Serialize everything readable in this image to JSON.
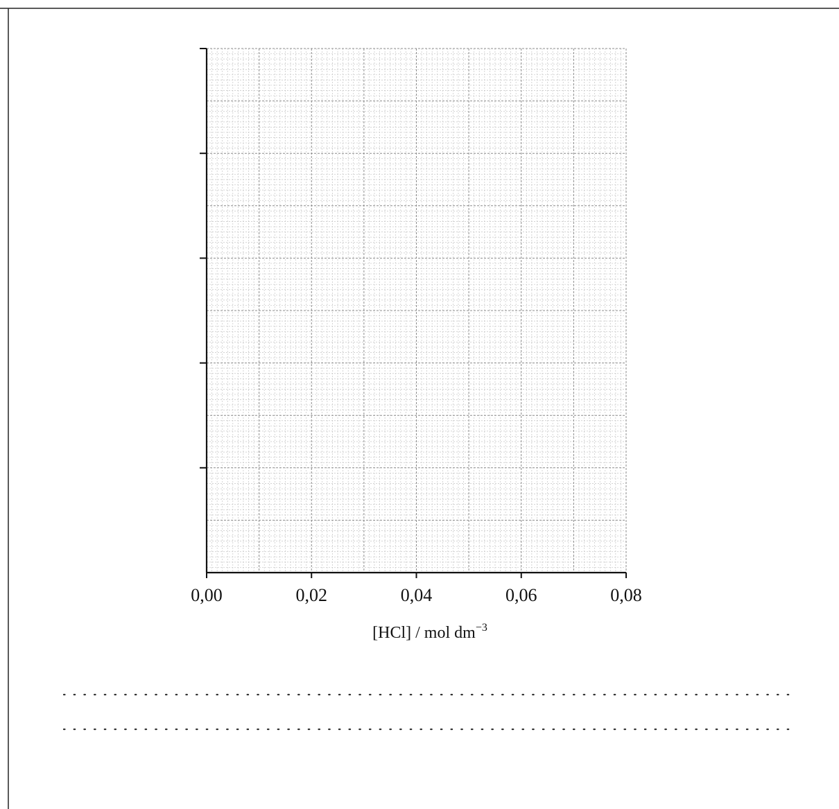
{
  "chart_data": {
    "type": "scatter",
    "title": "",
    "xlabel": "[HCl] / mol dm",
    "xlabel_superscript": "−3",
    "ylabel": "",
    "xlim": [
      0,
      0.08
    ],
    "x_ticks": [
      0,
      0.02,
      0.04,
      0.06,
      0.08
    ],
    "x_tick_labels": [
      "0,00",
      "0,02",
      "0,04",
      "0,06",
      "0,08"
    ],
    "y_major_ticks": 5,
    "y_tick_labels": [],
    "grid": true,
    "series": []
  },
  "answer_lines": {
    "count": 2,
    "style": "dotted"
  },
  "colors": {
    "axis": "#111111",
    "grid_major": "#8c8c8c",
    "grid_minor": "#c4c4c4",
    "frame": "#222222"
  }
}
